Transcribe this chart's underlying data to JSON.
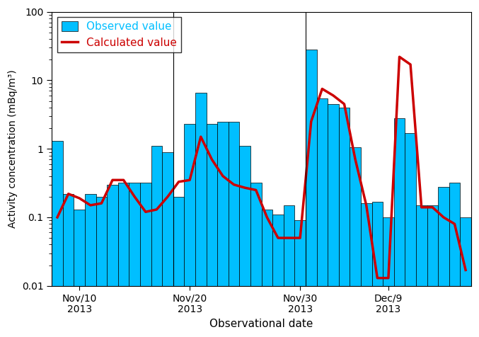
{
  "bar_values": [
    1.3,
    0.22,
    0.13,
    0.22,
    0.2,
    0.3,
    0.32,
    0.32,
    0.32,
    1.1,
    0.9,
    0.2,
    2.3,
    6.5,
    2.3,
    2.5,
    2.5,
    1.1,
    0.32,
    0.13,
    0.11,
    0.15,
    0.09,
    28,
    5.5,
    4.5,
    4.0,
    1.05,
    0.16,
    0.17,
    0.1,
    2.8,
    1.7,
    0.15,
    0.15,
    0.28,
    0.32,
    0.1
  ],
  "line_values": [
    0.1,
    0.22,
    0.19,
    0.15,
    0.16,
    0.35,
    0.35,
    0.2,
    0.12,
    0.13,
    0.2,
    0.33,
    0.35,
    1.5,
    0.7,
    0.4,
    0.3,
    0.27,
    0.25,
    0.1,
    0.05,
    0.05,
    0.05,
    2.5,
    7.5,
    6.0,
    4.5,
    0.7,
    0.15,
    0.013,
    0.013,
    22,
    17,
    0.14,
    0.14,
    0.1,
    0.08,
    0.017
  ],
  "bar_color": "#00BFFF",
  "bar_edgecolor": "#000000",
  "line_color": "#CC0000",
  "line_width": 2.5,
  "ylabel": "Activity concentration (mBq/m³)",
  "xlabel": "Observational date",
  "ylim_min": 0.01,
  "ylim_max": 100,
  "xtick_labels": [
    "Nov/10\n2013",
    "Nov/20\n2013",
    "Nov/30\n2013",
    "Dec/9\n2013"
  ],
  "vline_x": [
    11.5,
    23.5
  ],
  "legend_observed": "Observed value",
  "legend_calculated": "Calculated value"
}
